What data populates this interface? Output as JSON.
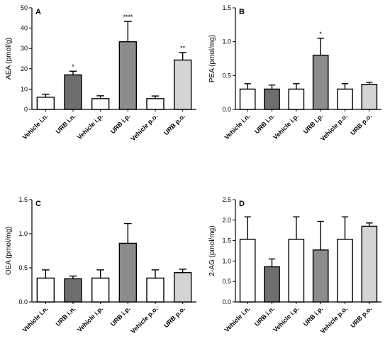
{
  "chart_data": [
    {
      "panel": "A",
      "type": "bar",
      "ylabel": "AEA (pmol/g)",
      "ylim": [
        0,
        50
      ],
      "yticks": [
        "0",
        "10",
        "20",
        "30",
        "40",
        "50"
      ],
      "categories": [
        "Vehicle i.n.",
        "URB i.n.",
        "Vehicle i.p.",
        "URB i.p.",
        "Vehicle p.o.",
        "URB p.o."
      ],
      "values": [
        6.0,
        17.0,
        5.3,
        33.3,
        5.3,
        24.3
      ],
      "errors": [
        1.5,
        1.8,
        1.4,
        10.0,
        1.3,
        3.7
      ],
      "significance": [
        "",
        "*",
        "",
        "****",
        "",
        "**"
      ],
      "bar_colors": [
        "#ffffff",
        "#6e6e6e",
        "#ffffff",
        "#8c8c8c",
        "#ffffff",
        "#d4d4d4"
      ]
    },
    {
      "panel": "B",
      "type": "bar",
      "ylabel": "PEA (pmol/mg)",
      "ylim": [
        0,
        1.5
      ],
      "yticks": [
        "0.0",
        "0.5",
        "1.0",
        "1.5"
      ],
      "categories": [
        "Vehicle i.n.",
        "URB i.n.",
        "Vehicle i.p.",
        "URB i.p.",
        "Vehicle p.o.",
        "URB p.o."
      ],
      "values": [
        0.3,
        0.3,
        0.3,
        0.8,
        0.3,
        0.37
      ],
      "errors": [
        0.08,
        0.06,
        0.08,
        0.25,
        0.08,
        0.03
      ],
      "significance": [
        "",
        "",
        "",
        "*",
        "",
        ""
      ],
      "bar_colors": [
        "#ffffff",
        "#6e6e6e",
        "#ffffff",
        "#8c8c8c",
        "#ffffff",
        "#d4d4d4"
      ]
    },
    {
      "panel": "C",
      "type": "bar",
      "ylabel": "OEA (pmol/mg)",
      "ylim": [
        0,
        1.5
      ],
      "yticks": [
        "0.0",
        "0.5",
        "1.0",
        "1.5"
      ],
      "categories": [
        "Vehicle i.n.",
        "URB i.n.",
        "Vehicle i.p.",
        "URB i.p.",
        "Vehicle p.o.",
        "URB p.o."
      ],
      "values": [
        0.35,
        0.34,
        0.35,
        0.86,
        0.35,
        0.43
      ],
      "errors": [
        0.12,
        0.04,
        0.12,
        0.29,
        0.12,
        0.05
      ],
      "significance": [
        "",
        "",
        "",
        "",
        "",
        ""
      ],
      "bar_colors": [
        "#ffffff",
        "#6e6e6e",
        "#ffffff",
        "#8c8c8c",
        "#ffffff",
        "#d4d4d4"
      ]
    },
    {
      "panel": "D",
      "type": "bar",
      "ylabel": "2-AG (pmol/mg)",
      "ylim": [
        0,
        2.5
      ],
      "yticks": [
        "0.0",
        "0.5",
        "1.0",
        "1.5",
        "2.0",
        "2.5"
      ],
      "categories": [
        "Vehicle i.n.",
        "URB i.n.",
        "Vehicle i.p.",
        "URB i.p.",
        "Vehicle p.o.",
        "URB p.o."
      ],
      "values": [
        1.53,
        0.86,
        1.53,
        1.27,
        1.53,
        1.85
      ],
      "errors": [
        0.55,
        0.19,
        0.55,
        0.7,
        0.55,
        0.08
      ],
      "significance": [
        "",
        "",
        "",
        "",
        "",
        ""
      ],
      "bar_colors": [
        "#ffffff",
        "#6e6e6e",
        "#ffffff",
        "#8c8c8c",
        "#ffffff",
        "#d4d4d4"
      ]
    }
  ]
}
